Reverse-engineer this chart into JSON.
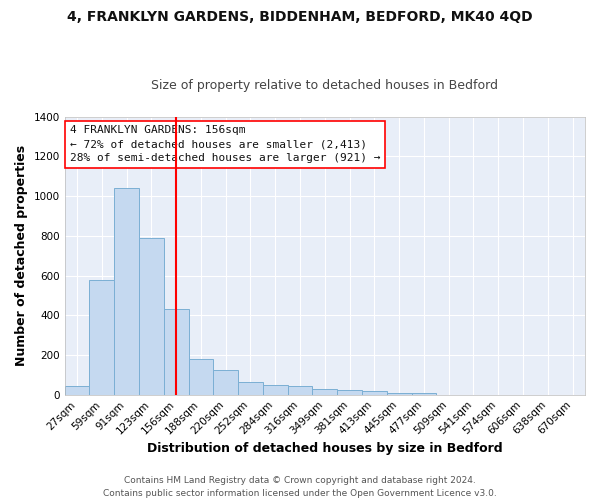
{
  "title": "4, FRANKLYN GARDENS, BIDDENHAM, BEDFORD, MK40 4QD",
  "subtitle": "Size of property relative to detached houses in Bedford",
  "xlabel": "Distribution of detached houses by size in Bedford",
  "ylabel": "Number of detached properties",
  "footer_line1": "Contains HM Land Registry data © Crown copyright and database right 2024.",
  "footer_line2": "Contains public sector information licensed under the Open Government Licence v3.0.",
  "categories": [
    "27sqm",
    "59sqm",
    "91sqm",
    "123sqm",
    "156sqm",
    "188sqm",
    "220sqm",
    "252sqm",
    "284sqm",
    "316sqm",
    "349sqm",
    "381sqm",
    "413sqm",
    "445sqm",
    "477sqm",
    "509sqm",
    "541sqm",
    "574sqm",
    "606sqm",
    "638sqm",
    "670sqm"
  ],
  "values": [
    45,
    580,
    1040,
    790,
    430,
    180,
    125,
    65,
    50,
    45,
    28,
    25,
    18,
    10,
    10,
    0,
    0,
    0,
    0,
    0,
    0
  ],
  "bar_color": "#c5d9f0",
  "bar_edge_color": "#7bafd4",
  "red_line_index": 4,
  "annotation_title": "4 FRANKLYN GARDENS: 156sqm",
  "annotation_line1": "← 72% of detached houses are smaller (2,413)",
  "annotation_line2": "28% of semi-detached houses are larger (921) →",
  "ylim": [
    0,
    1400
  ],
  "yticks": [
    0,
    200,
    400,
    600,
    800,
    1000,
    1200,
    1400
  ],
  "background_color": "#e8eef8",
  "grid_color": "#ffffff",
  "fig_background": "#ffffff",
  "title_fontsize": 10,
  "subtitle_fontsize": 9,
  "axis_label_fontsize": 9,
  "tick_fontsize": 7.5,
  "annotation_fontsize": 8,
  "footer_fontsize": 6.5
}
